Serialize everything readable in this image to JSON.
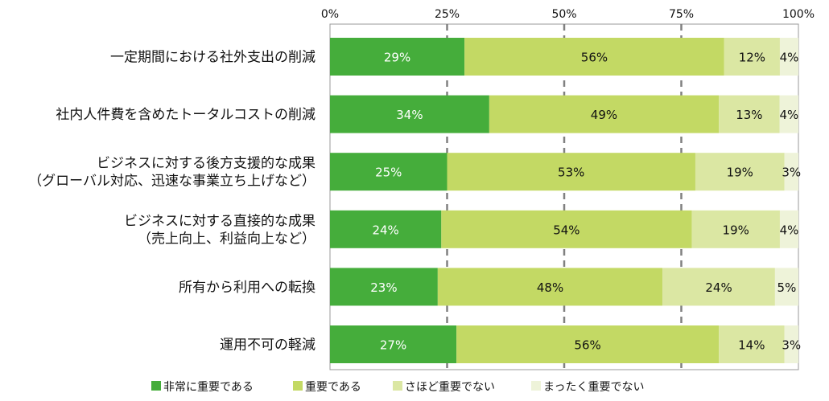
{
  "chart_data": {
    "type": "bar",
    "orientation": "horizontal",
    "stacked": true,
    "percent": true,
    "xlim": [
      0,
      100
    ],
    "x_ticks": [
      "0%",
      "25%",
      "50%",
      "75%",
      "100%"
    ],
    "categories": [
      [
        "一定期間における社外支出の削減"
      ],
      [
        "社内人件費を含めたトータルコストの削減"
      ],
      [
        "ビジネスに対する後方支援的な成果",
        "（グローバル対応、迅速な事業立ち上げなど）"
      ],
      [
        "ビジネスに対する直接的な成果",
        "（売上向上、利益向上など）"
      ],
      [
        "所有から利用への転換"
      ],
      [
        "運用不可の軽減"
      ]
    ],
    "series": [
      {
        "name": "非常に重要である",
        "color": "#45ad3b",
        "label_color": "#ffffff",
        "values": [
          29,
          34,
          25,
          24,
          23,
          27
        ],
        "labels": [
          "29%",
          "34%",
          "25%",
          "24%",
          "23%",
          "27%"
        ]
      },
      {
        "name": "重要である",
        "color": "#c3d964",
        "label_color": "#111111",
        "values": [
          56,
          49,
          53,
          54,
          48,
          56
        ],
        "labels": [
          "56%",
          "49%",
          "53%",
          "54%",
          "48%",
          "56%"
        ]
      },
      {
        "name": "さほど重要でない",
        "color": "#dbe7a3",
        "label_color": "#111111",
        "values": [
          12,
          13,
          19,
          19,
          24,
          14
        ],
        "labels": [
          "12%",
          "13%",
          "19%",
          "19%",
          "24%",
          "14%"
        ]
      },
      {
        "name": "まったく重要でない",
        "color": "#eef3d9",
        "label_color": "#111111",
        "values": [
          4,
          4,
          3,
          4,
          5,
          3
        ],
        "labels": [
          "4%",
          "4%",
          "3%",
          "4%",
          "5%",
          "3%"
        ]
      }
    ],
    "grid": "vertical-dashed",
    "legend_position": "bottom"
  }
}
